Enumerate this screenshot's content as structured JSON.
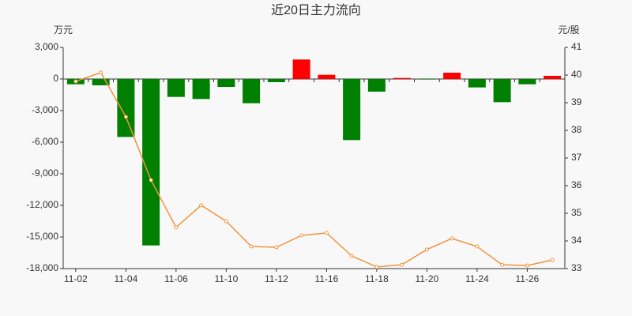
{
  "chart_data": {
    "type": "bar",
    "title": "近20日主力流向",
    "y_label": "万元",
    "y2_label": "元/股",
    "categories": [
      "11-02",
      null,
      "11-04",
      null,
      "11-06",
      null,
      "11-10",
      null,
      "11-12",
      null,
      "11-16",
      null,
      "11-18",
      null,
      "11-20",
      null,
      "11-24",
      null,
      "11-26",
      null
    ],
    "series": [
      {
        "type": "bar",
        "positive_color": "#ff0000",
        "negative_color": "#008000",
        "values": [
          -500,
          -600,
          -5500,
          -15800,
          -1700,
          -1900,
          -750,
          -2300,
          -300,
          1850,
          400,
          -5800,
          -1200,
          100,
          -50,
          600,
          -800,
          -2200,
          -500,
          300
        ]
      },
      {
        "type": "line",
        "axis": "y2",
        "color": "#f0943d",
        "values": [
          39.77,
          40.09,
          38.49,
          36.2,
          34.49,
          35.29,
          34.71,
          33.8,
          33.77,
          34.2,
          34.29,
          33.46,
          33.06,
          33.14,
          33.69,
          34.09,
          33.8,
          33.14,
          33.11,
          33.31
        ]
      }
    ],
    "ylim": [
      -18000,
      3000
    ],
    "yticks": [
      {
        "value": 3000,
        "label": "3,000"
      },
      0,
      {
        "value": -3000,
        "label": "-3,000"
      },
      {
        "value": -6000,
        "label": "-6,000"
      },
      {
        "value": -9000,
        "label": "-9,000"
      },
      {
        "value": -12000,
        "label": "-12,000"
      },
      {
        "value": -15000,
        "label": "-15,000"
      },
      {
        "value": -18000,
        "label": "-18,000"
      }
    ],
    "y2lim": [
      33,
      41
    ],
    "y2ticks": [
      41,
      40,
      39,
      38,
      37,
      36,
      35,
      34,
      33
    ],
    "grid": false
  }
}
